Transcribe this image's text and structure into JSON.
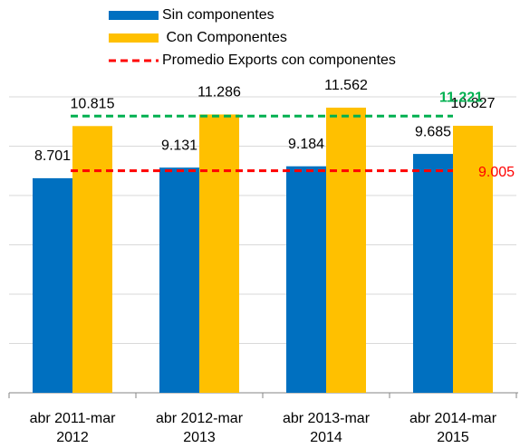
{
  "chart_data": {
    "type": "bar",
    "categories": [
      "abr 2011-mar 2012",
      "abr 2012-mar 2013",
      "abr 2013-mar 2014",
      "abr 2014-mar 2015"
    ],
    "series": [
      {
        "name": "Sin componentes",
        "color": "#0070C0",
        "values": [
          8.701,
          9.131,
          9.184,
          9.685
        ]
      },
      {
        "name": " Con Componentes",
        "color": "#FFC000",
        "values": [
          10.815,
          11.286,
          11.562,
          10.827
        ]
      }
    ],
    "reference_lines": [
      {
        "name": "Promedio Exports con componentes",
        "value": 9.005,
        "color": "#FF0000"
      },
      {
        "value": 11.221,
        "color": "#00B050"
      }
    ],
    "ylim": [
      0,
      12
    ],
    "yticks": [
      0,
      2,
      4,
      6,
      8,
      10,
      12
    ],
    "grid": true
  }
}
